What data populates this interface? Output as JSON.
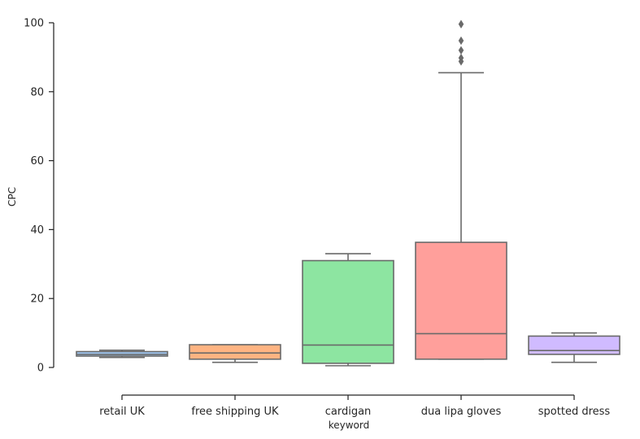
{
  "chart_data": {
    "type": "box",
    "title": "",
    "xlabel": "keyword",
    "ylabel": "CPC",
    "ylim": [
      -8,
      100
    ],
    "yticks": [
      0,
      20,
      40,
      60,
      80,
      100
    ],
    "grid": false,
    "categories": [
      "retail UK",
      "free shipping UK",
      "cardigan",
      "dua lipa gloves",
      "spotted dress"
    ],
    "boxes": [
      {
        "name": "retail UK",
        "whisker_low": 2.9,
        "q1": 3.3,
        "median": 3.8,
        "q3": 4.6,
        "whisker_high": 5.0,
        "outliers": [],
        "color": "#a1c9f4"
      },
      {
        "name": "free shipping UK",
        "whisker_low": 1.5,
        "q1": 2.4,
        "median": 4.2,
        "q3": 6.6,
        "whisker_high": 6.6,
        "outliers": [],
        "color": "#ffb482"
      },
      {
        "name": "cardigan",
        "whisker_low": 0.5,
        "q1": 1.2,
        "median": 6.5,
        "q3": 31.0,
        "whisker_high": 33.0,
        "outliers": [],
        "color": "#8de5a1"
      },
      {
        "name": "dua lipa gloves",
        "whisker_low": 2.4,
        "q1": 2.4,
        "median": 9.8,
        "q3": 36.3,
        "whisker_high": 85.5,
        "outliers": [
          88.8,
          89.8,
          92.0,
          94.8,
          99.6
        ],
        "color": "#ff9f9b"
      },
      {
        "name": "spotted dress",
        "whisker_low": 1.5,
        "q1": 3.8,
        "median": 4.9,
        "q3": 9.1,
        "whisker_high": 10.0,
        "outliers": [],
        "color": "#d0bbff"
      }
    ],
    "line_color": "#6a6a6a",
    "axis_color": "#262626"
  }
}
